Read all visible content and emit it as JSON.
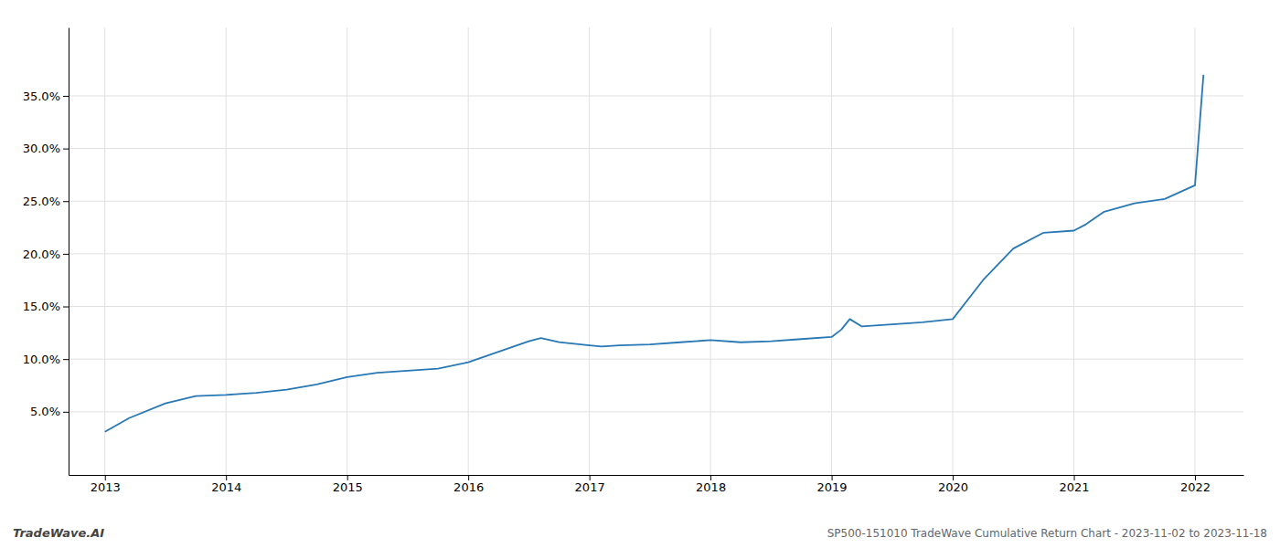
{
  "chart_data": {
    "type": "line",
    "annotations": [
      "TradeWave.AI",
      "SP500-151010 TradeWave Cumulative Return Chart - 2023-11-02 to 2023-11-18"
    ],
    "color": "#2878b5",
    "grid": true,
    "x": [
      2013.0,
      2013.2,
      2013.5,
      2013.75,
      2014.0,
      2014.25,
      2014.5,
      2014.75,
      2015.0,
      2015.25,
      2015.5,
      2015.75,
      2016.0,
      2016.25,
      2016.5,
      2016.6,
      2016.75,
      2017.0,
      2017.1,
      2017.25,
      2017.5,
      2017.75,
      2018.0,
      2018.25,
      2018.5,
      2018.75,
      2019.0,
      2019.08,
      2019.15,
      2019.25,
      2019.5,
      2019.75,
      2020.0,
      2020.25,
      2020.5,
      2020.75,
      2021.0,
      2021.1,
      2021.25,
      2021.5,
      2021.75,
      2022.0,
      2022.07
    ],
    "values": [
      0.031,
      0.044,
      0.058,
      0.065,
      0.066,
      0.068,
      0.071,
      0.076,
      0.083,
      0.087,
      0.089,
      0.091,
      0.097,
      0.107,
      0.117,
      0.12,
      0.116,
      0.113,
      0.112,
      0.113,
      0.114,
      0.116,
      0.118,
      0.116,
      0.117,
      0.119,
      0.121,
      0.128,
      0.138,
      0.131,
      0.133,
      0.135,
      0.138,
      0.175,
      0.205,
      0.22,
      0.222,
      0.228,
      0.24,
      0.248,
      0.252,
      0.265,
      0.37
    ],
    "xlim": [
      2012.7,
      2022.4
    ],
    "ylim": [
      -0.01,
      0.415
    ],
    "xticks": [
      2013,
      2014,
      2015,
      2016,
      2017,
      2018,
      2019,
      2020,
      2021,
      2022
    ],
    "yticks": [
      {
        "value": 0.05,
        "label": "5.0%"
      },
      {
        "value": 0.1,
        "label": "10.0%"
      },
      {
        "value": 0.15,
        "label": "15.0%"
      },
      {
        "value": 0.2,
        "label": "20.0%"
      },
      {
        "value": 0.25,
        "label": "25.0%"
      },
      {
        "value": 0.3,
        "label": "30.0%"
      },
      {
        "value": 0.35,
        "label": "35.0%"
      }
    ]
  }
}
